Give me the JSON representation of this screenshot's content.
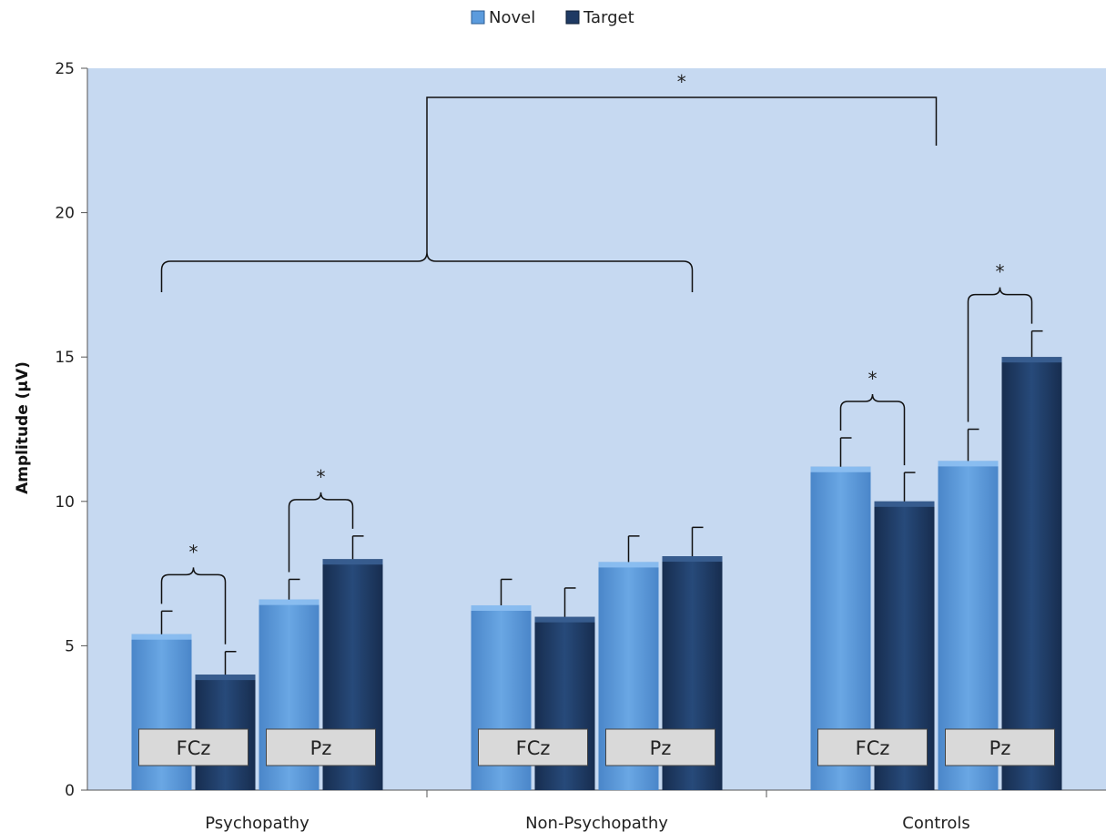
{
  "chart_data": {
    "type": "bar",
    "title": "",
    "xlabel": "",
    "ylabel": "Amplitude (μV)",
    "ylim": [
      0,
      25
    ],
    "yticks": [
      0,
      5,
      10,
      15,
      20,
      25
    ],
    "grid": false,
    "legend": {
      "position": "top-center",
      "entries": [
        "Novel",
        "Target"
      ]
    },
    "categories": [
      "Psychopathy",
      "Non-Psychopathy",
      "Controls"
    ],
    "electrodes": [
      "FCz",
      "Pz"
    ],
    "series": [
      {
        "name": "Novel",
        "color": "#5b9bdd",
        "values": [
          [
            5.4,
            6.6
          ],
          [
            6.4,
            7.9
          ],
          [
            11.2,
            11.4
          ]
        ],
        "errors": [
          [
            0.8,
            0.7
          ],
          [
            0.9,
            0.9
          ],
          [
            1.0,
            1.1
          ]
        ]
      },
      {
        "name": "Target",
        "color": "#1f3a63",
        "values": [
          [
            4.0,
            8.0
          ],
          [
            6.0,
            8.1
          ],
          [
            10.0,
            15.0
          ]
        ],
        "errors": [
          [
            0.8,
            0.8
          ],
          [
            1.0,
            1.0
          ],
          [
            1.0,
            0.9
          ]
        ]
      }
    ],
    "significance_marker": "*",
    "annotations": [
      {
        "type": "pair",
        "group": 0,
        "electrode": 0,
        "label": "*"
      },
      {
        "type": "pair",
        "group": 0,
        "electrode": 1,
        "label": "*"
      },
      {
        "type": "pair",
        "group": 2,
        "electrode": 0,
        "label": "*"
      },
      {
        "type": "pair",
        "group": 2,
        "electrode": 1,
        "label": "*"
      },
      {
        "type": "group-brace",
        "groups": [
          0,
          1
        ],
        "label": ""
      },
      {
        "type": "top-bracket",
        "label": "*"
      }
    ],
    "colors": {
      "plot_background": "#c6d9f1",
      "novel": "#5b9bdd",
      "target": "#1f3a63",
      "electrode_box": "#d9d9d9"
    }
  }
}
